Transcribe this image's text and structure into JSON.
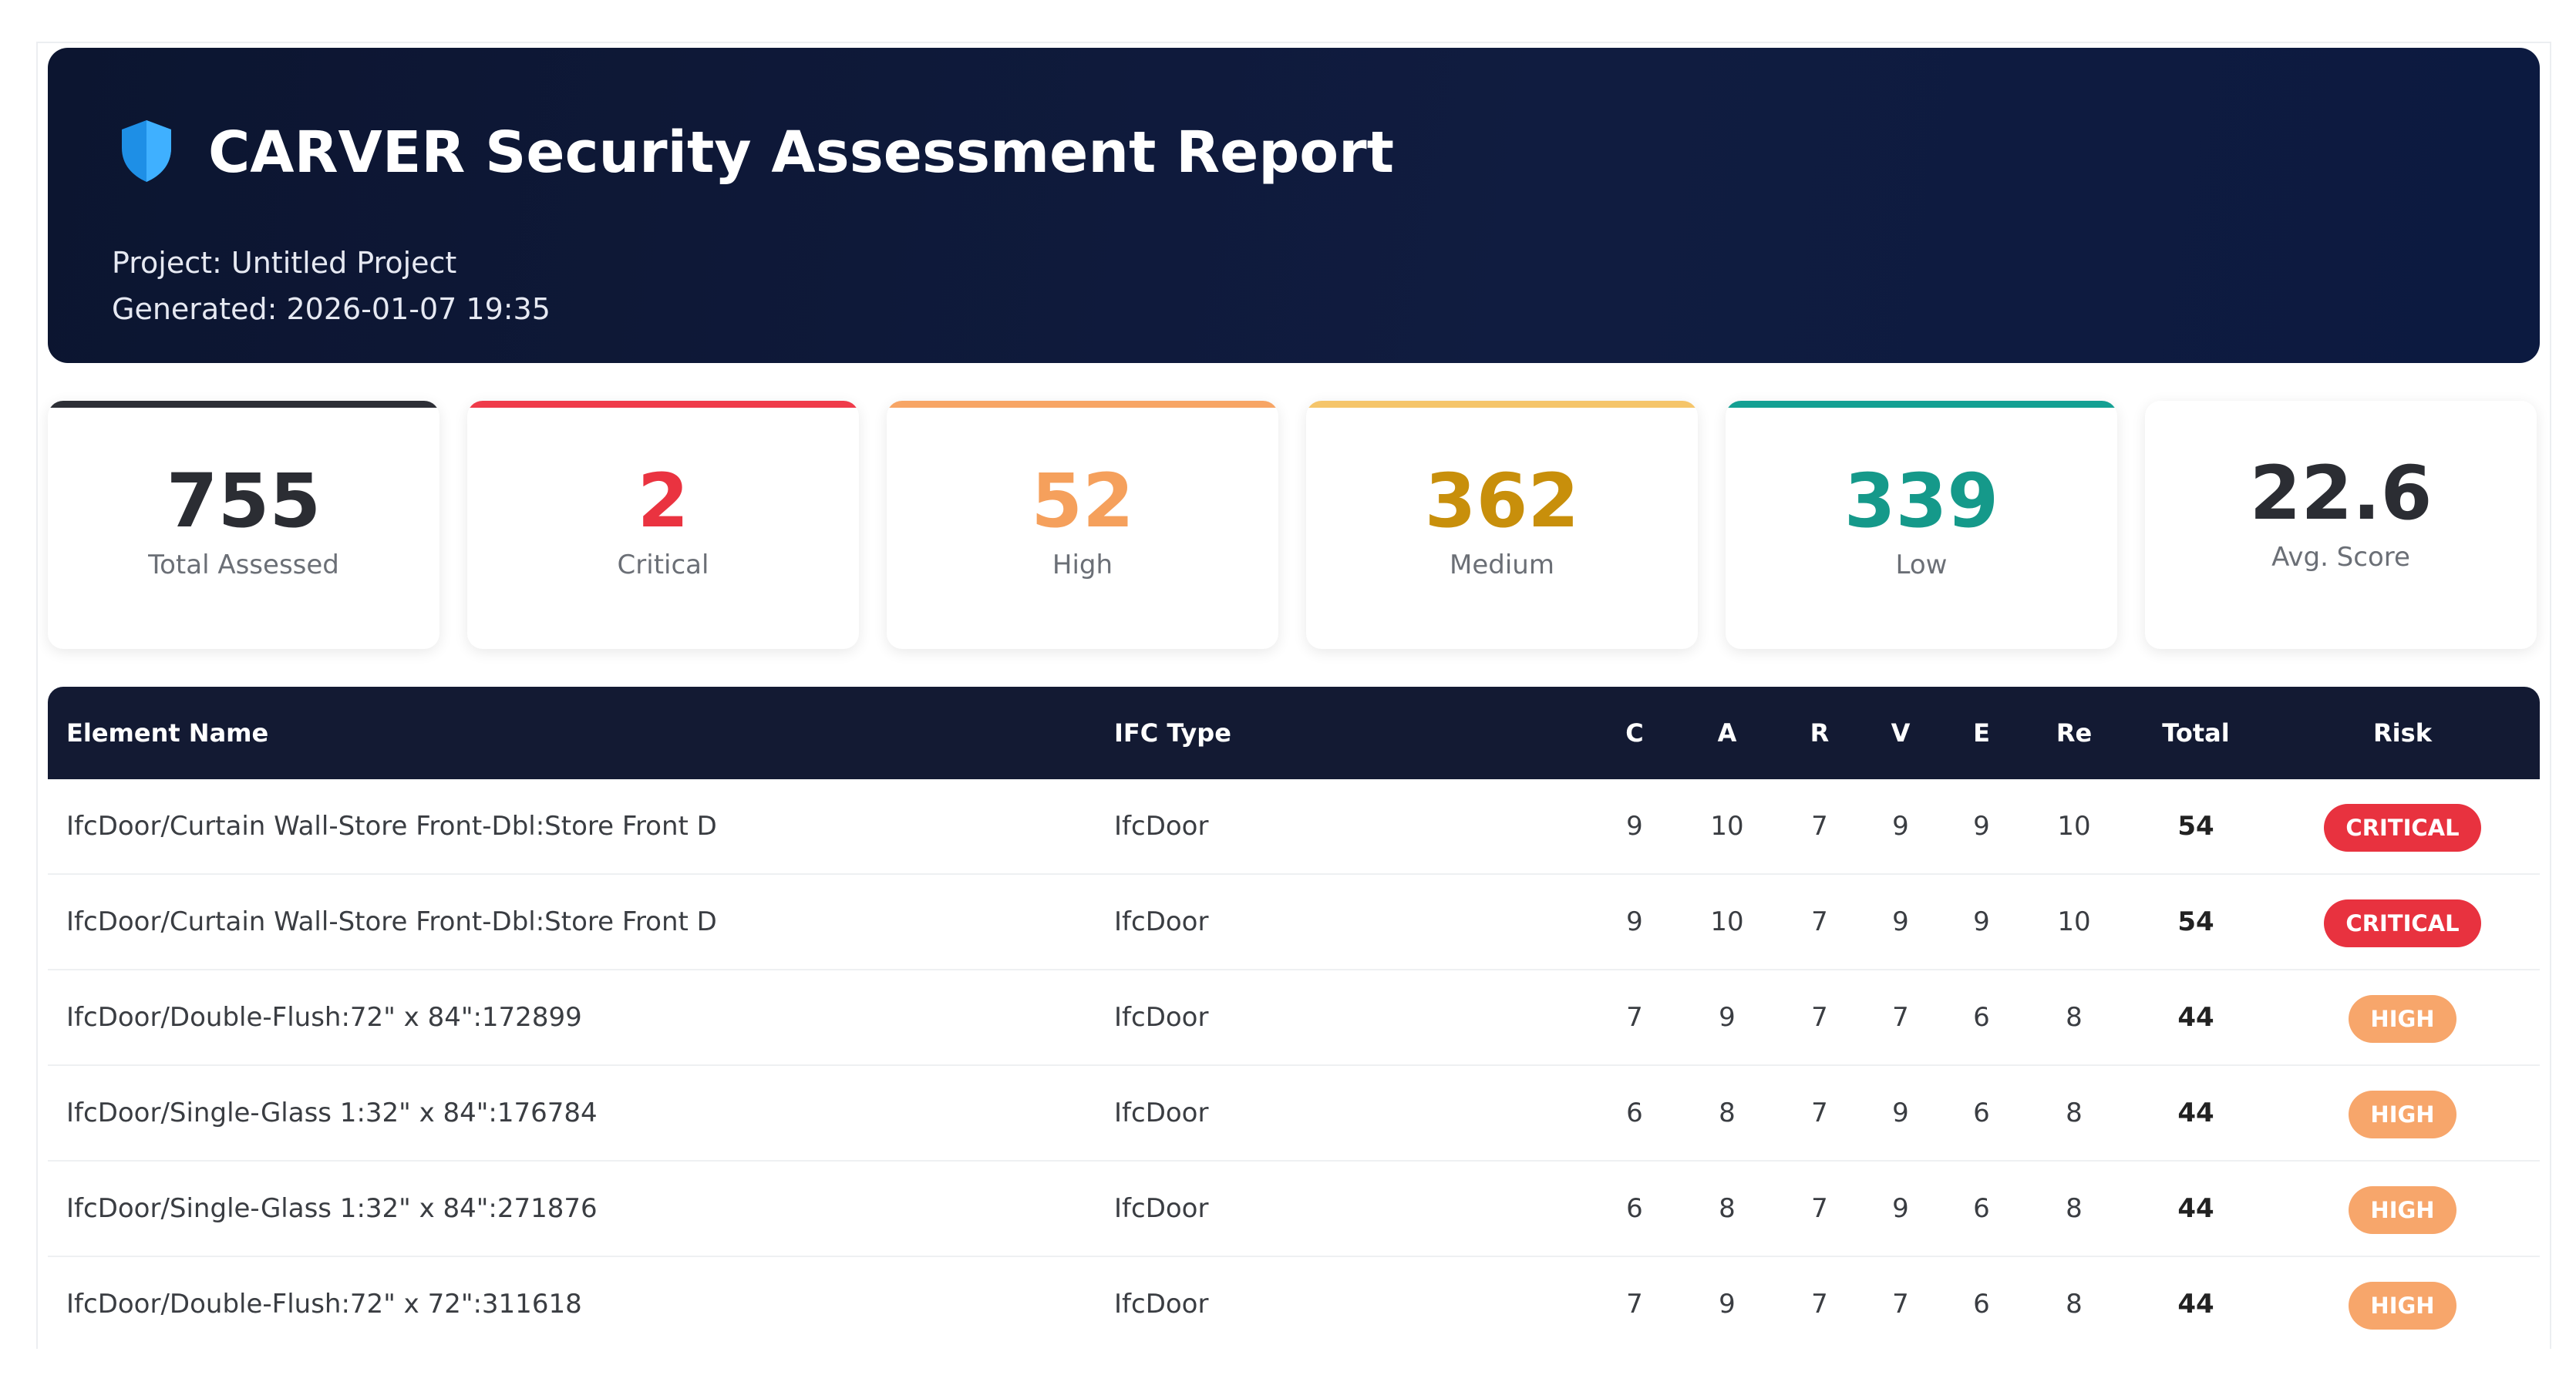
{
  "header": {
    "title": "CARVER Security Assessment Report",
    "project": "Project: Untitled Project",
    "generated": "Generated: 2026-01-07 19:35"
  },
  "stats": [
    {
      "value": 755,
      "label": "Total Assessed"
    },
    {
      "value": 2,
      "label": "Critical"
    },
    {
      "value": 52,
      "label": "High"
    },
    {
      "value": 362,
      "label": "Medium"
    },
    {
      "value": 339,
      "label": "Low"
    },
    {
      "value": 22.6,
      "label": "Avg. Score"
    }
  ],
  "table": {
    "columns": [
      "Element Name",
      "IFC Type",
      "C",
      "A",
      "R",
      "V",
      "E",
      "Re",
      "Total",
      "Risk"
    ],
    "rows": [
      [
        "IfcDoor/Curtain Wall-Store Front-Dbl:Store Front D",
        "IfcDoor",
        9,
        10,
        7,
        9,
        9,
        10,
        54,
        "CRITICAL"
      ],
      [
        "IfcDoor/Curtain Wall-Store Front-Dbl:Store Front D",
        "IfcDoor",
        9,
        10,
        7,
        9,
        9,
        10,
        54,
        "CRITICAL"
      ],
      [
        "IfcDoor/Double-Flush:72\" x 84\":172899",
        "IfcDoor",
        7,
        9,
        7,
        7,
        6,
        8,
        44,
        "HIGH"
      ],
      [
        "IfcDoor/Single-Glass 1:32\" x 84\":176784",
        "IfcDoor",
        6,
        8,
        7,
        9,
        6,
        8,
        44,
        "HIGH"
      ],
      [
        "IfcDoor/Single-Glass 1:32\" x 84\":271876",
        "IfcDoor",
        6,
        8,
        7,
        9,
        6,
        8,
        44,
        "HIGH"
      ],
      [
        "IfcDoor/Double-Flush:72\" x 72\":311618",
        "IfcDoor",
        7,
        9,
        7,
        7,
        6,
        8,
        44,
        "HIGH"
      ]
    ]
  }
}
